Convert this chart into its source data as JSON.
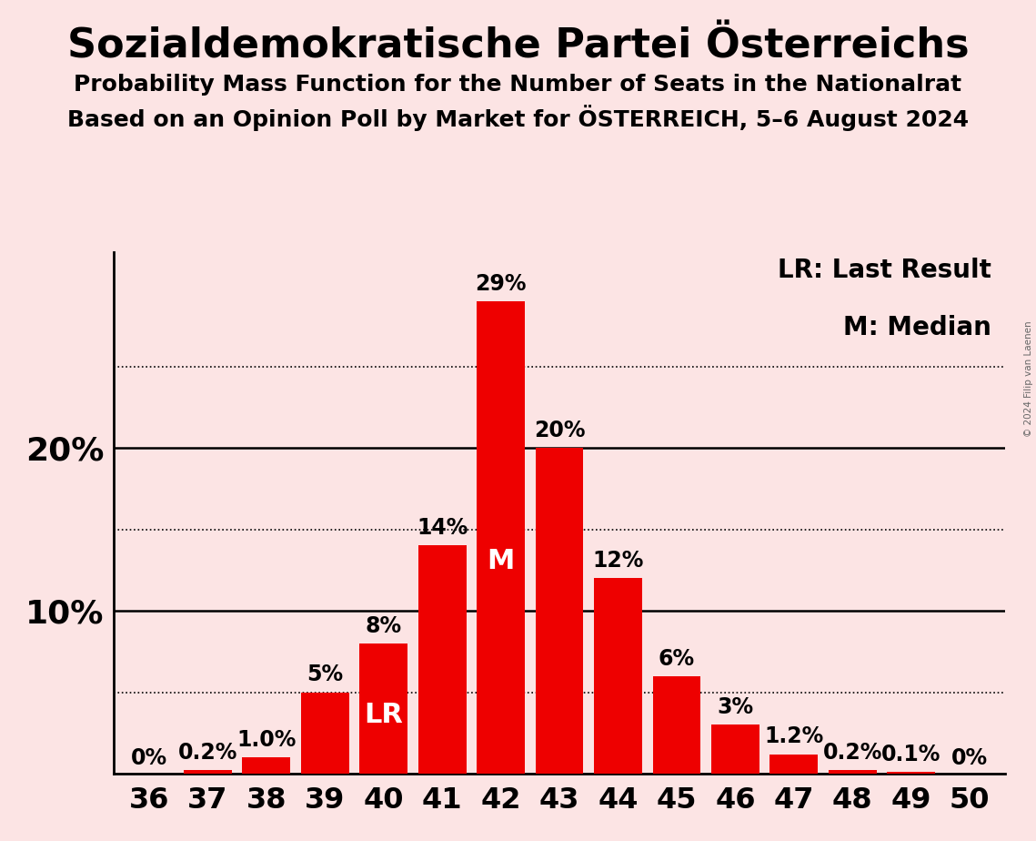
{
  "title": "Sozialdemokratische Partei Österreichs",
  "subtitle1": "Probability Mass Function for the Number of Seats in the Nationalrat",
  "subtitle2": "Based on an Opinion Poll by Market for ÖSTERREICH, 5–6 August 2024",
  "copyright": "© 2024 Filip van Laenen",
  "seats": [
    36,
    37,
    38,
    39,
    40,
    41,
    42,
    43,
    44,
    45,
    46,
    47,
    48,
    49,
    50
  ],
  "probabilities": [
    0.0,
    0.2,
    1.0,
    5.0,
    8.0,
    14.0,
    29.0,
    20.0,
    12.0,
    6.0,
    3.0,
    1.2,
    0.2,
    0.1,
    0.0
  ],
  "labels": [
    "0%",
    "0.2%",
    "1.0%",
    "5%",
    "8%",
    "14%",
    "29%",
    "20%",
    "12%",
    "6%",
    "3%",
    "1.2%",
    "0.2%",
    "0.1%",
    "0%"
  ],
  "bar_color": "#ee0000",
  "background_color": "#fce4e4",
  "text_color": "#000000",
  "label_inside_color": "#ffffff",
  "last_result_seat": 40,
  "median_seat": 42,
  "ylim": [
    0,
    32
  ],
  "solid_lines": [
    10,
    20
  ],
  "dotted_lines": [
    5,
    15,
    25
  ],
  "legend_text": [
    "LR: Last Result",
    "M: Median"
  ],
  "title_fontsize": 32,
  "subtitle_fontsize": 18,
  "tick_fontsize": 23,
  "label_fontsize": 17,
  "legend_fontsize": 20,
  "ylabel_fontsize": 26,
  "bar_width": 0.82
}
